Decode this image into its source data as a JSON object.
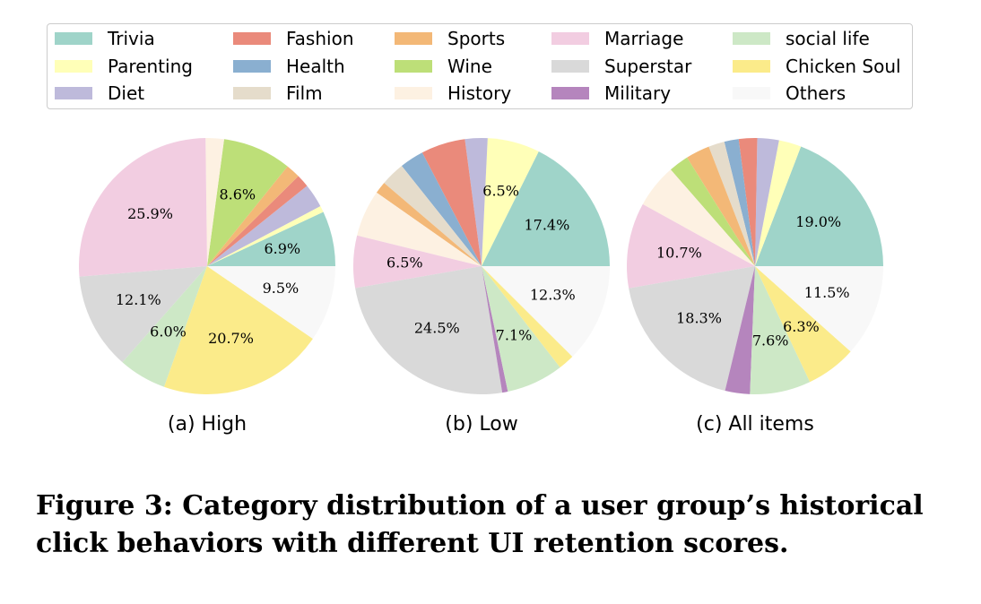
{
  "legend": [
    {
      "label": "Trivia",
      "color": "#9fd4c9"
    },
    {
      "label": "Parenting",
      "color": "#ffffb8"
    },
    {
      "label": "Diet",
      "color": "#bebadb"
    },
    {
      "label": "Fashion",
      "color": "#ea8a7b"
    },
    {
      "label": "Health",
      "color": "#8aafd0"
    },
    {
      "label": "Film",
      "color": "#e5dccb"
    },
    {
      "label": "Sports",
      "color": "#f3b877"
    },
    {
      "label": "Wine",
      "color": "#bddf78"
    },
    {
      "label": "History",
      "color": "#fdf1e2"
    },
    {
      "label": "Marriage",
      "color": "#f2cde1"
    },
    {
      "label": "Superstar",
      "color": "#d9d9d9"
    },
    {
      "label": "Military",
      "color": "#b585bd"
    },
    {
      "label": "social life",
      "color": "#cde8c6"
    },
    {
      "label": "Chicken Soul",
      "color": "#fbeb8a"
    },
    {
      "label": "Others",
      "color": "#f8f8f8"
    }
  ],
  "chart_data": [
    {
      "type": "pie",
      "caption": "(a) High",
      "start": "east",
      "direction": "counterclockwise",
      "slices": [
        {
          "category": "Trivia",
          "value": 6.9,
          "label": "6.9%"
        },
        {
          "category": "Parenting",
          "value": 0.8,
          "label": ""
        },
        {
          "category": "Diet",
          "value": 3.0,
          "label": ""
        },
        {
          "category": "Fashion",
          "value": 1.6,
          "label": ""
        },
        {
          "category": "Sports",
          "value": 1.8,
          "label": ""
        },
        {
          "category": "Wine",
          "value": 8.6,
          "label": "8.6%"
        },
        {
          "category": "History",
          "value": 2.3,
          "label": ""
        },
        {
          "category": "Marriage",
          "value": 25.9,
          "label": "25.9%"
        },
        {
          "category": "Superstar",
          "value": 12.1,
          "label": "12.1%"
        },
        {
          "category": "social life",
          "value": 6.0,
          "label": "6.0%"
        },
        {
          "category": "Chicken Soul",
          "value": 20.7,
          "label": "20.7%"
        },
        {
          "category": "Others",
          "value": 9.5,
          "label": "9.5%"
        }
      ]
    },
    {
      "type": "pie",
      "caption": "(b) Low",
      "start": "east",
      "direction": "counterclockwise",
      "slices": [
        {
          "category": "Trivia",
          "value": 17.4,
          "label": "17.4%"
        },
        {
          "category": "Parenting",
          "value": 6.5,
          "label": "6.5%"
        },
        {
          "category": "Diet",
          "value": 2.8,
          "label": ""
        },
        {
          "category": "Fashion",
          "value": 5.5,
          "label": ""
        },
        {
          "category": "Health",
          "value": 3.0,
          "label": ""
        },
        {
          "category": "Film",
          "value": 3.0,
          "label": ""
        },
        {
          "category": "Sports",
          "value": 1.5,
          "label": ""
        },
        {
          "category": "History",
          "value": 5.8,
          "label": ""
        },
        {
          "category": "Marriage",
          "value": 6.5,
          "label": "6.5%"
        },
        {
          "category": "Superstar",
          "value": 24.5,
          "label": "24.5%"
        },
        {
          "category": "Military",
          "value": 0.7,
          "label": ""
        },
        {
          "category": "social life",
          "value": 7.1,
          "label": "7.1%"
        },
        {
          "category": "Chicken Soul",
          "value": 2.0,
          "label": ""
        },
        {
          "category": "Others",
          "value": 12.3,
          "label": "12.3%"
        }
      ]
    },
    {
      "type": "pie",
      "caption": "(c) All items",
      "start": "east",
      "direction": "counterclockwise",
      "slices": [
        {
          "category": "Trivia",
          "value": 19.0,
          "label": "19.0%"
        },
        {
          "category": "Parenting",
          "value": 2.8,
          "label": ""
        },
        {
          "category": "Diet",
          "value": 2.7,
          "label": ""
        },
        {
          "category": "Fashion",
          "value": 2.3,
          "label": ""
        },
        {
          "category": "Health",
          "value": 1.8,
          "label": ""
        },
        {
          "category": "Film",
          "value": 2.0,
          "label": ""
        },
        {
          "category": "Sports",
          "value": 3.0,
          "label": ""
        },
        {
          "category": "Wine",
          "value": 2.5,
          "label": ""
        },
        {
          "category": "History",
          "value": 5.5,
          "label": ""
        },
        {
          "category": "Marriage",
          "value": 10.7,
          "label": "10.7%"
        },
        {
          "category": "Superstar",
          "value": 18.3,
          "label": "18.3%"
        },
        {
          "category": "Military",
          "value": 3.1,
          "label": ""
        },
        {
          "category": "social life",
          "value": 7.6,
          "label": "7.6%"
        },
        {
          "category": "Chicken Soul",
          "value": 6.3,
          "label": "6.3%"
        },
        {
          "category": "Others",
          "value": 11.5,
          "label": "11.5%"
        }
      ]
    }
  ],
  "figure_caption": "Figure 3: Category distribution of a user group’s historical click behaviors with different UI retention scores."
}
